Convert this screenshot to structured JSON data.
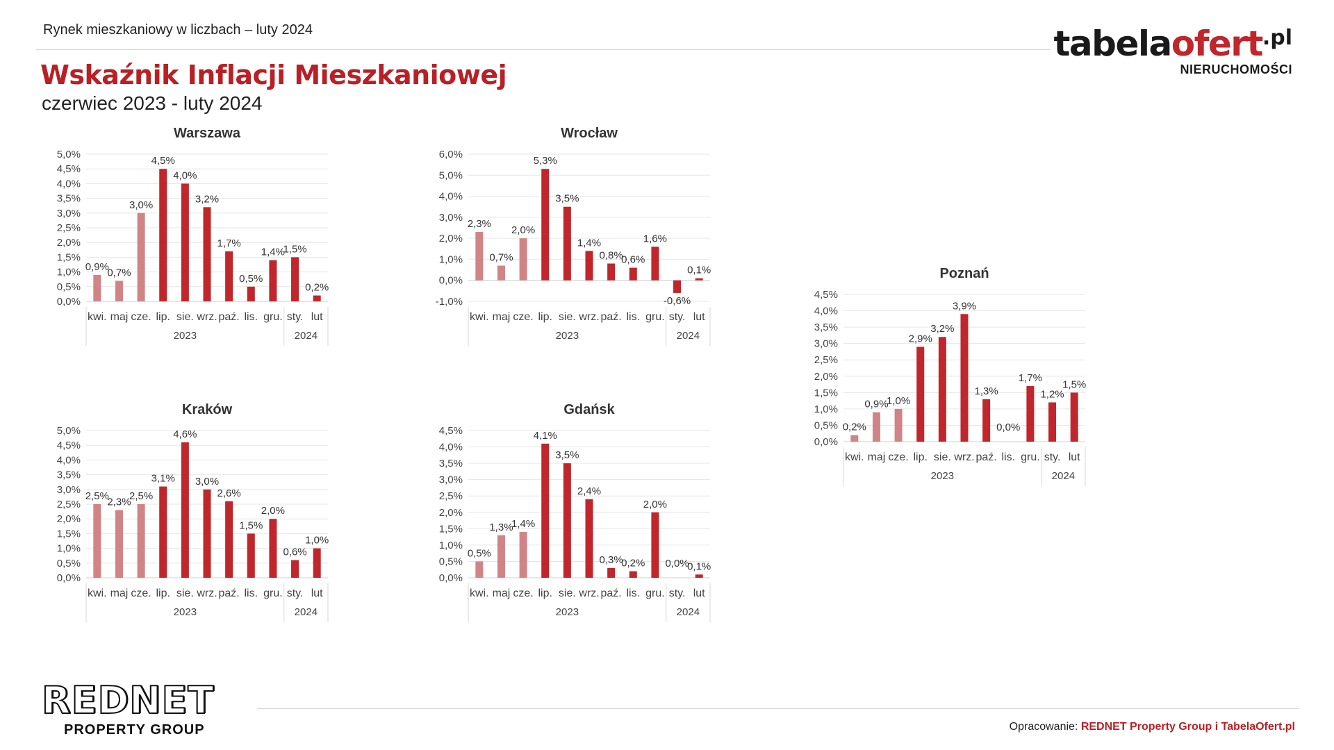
{
  "header": {
    "caption": "Rynek mieszkaniowy w liczbach – luty 2024",
    "title": "Wskaźnik Inflacji Mieszkaniowej",
    "subtitle": "czerwiec 2023 - luty 2024"
  },
  "brand": {
    "name_part1": "tabela",
    "name_part2": "ofert",
    "name_tld": ".pl",
    "sub": "NIERUCHOMOŚCI"
  },
  "footer": {
    "logo_name": "REDNET",
    "logo_sub": "PROPERTY GROUP",
    "credit_prefix": "Opracowanie: ",
    "credit_strong": "REDNET Property Group i TabelaOfert.pl"
  },
  "colors": {
    "bar_light": "#d18486",
    "bar_dark": "#c0262b",
    "title_red": "#b82025"
  },
  "chart_data": [
    {
      "id": "warszawa",
      "type": "bar",
      "title": "Warszawa",
      "categories": [
        "kwi.",
        "maj",
        "cze.",
        "lip.",
        "sie.",
        "wrz.",
        "paź.",
        "lis.",
        "gru.",
        "sty.",
        "lut"
      ],
      "values": [
        0.9,
        0.7,
        3.0,
        4.5,
        4.0,
        3.2,
        1.7,
        0.5,
        1.4,
        1.5,
        0.2
      ],
      "value_labels": [
        "0,9%",
        "0,7%",
        "3,0%",
        "4,5%",
        "4,0%",
        "3,2%",
        "1,7%",
        "0,5%",
        "1,4%",
        "1,5%",
        "0,2%"
      ],
      "light_count": 3,
      "year_groups": [
        {
          "label": "2023",
          "count": 9
        },
        {
          "label": "2024",
          "count": 2
        }
      ],
      "ylim": [
        0,
        5
      ],
      "yticks": [
        0,
        0.5,
        1,
        1.5,
        2,
        2.5,
        3,
        3.5,
        4,
        4.5,
        5
      ],
      "ytick_labels": [
        "0,0%",
        "0,5%",
        "1,0%",
        "1,5%",
        "2,0%",
        "2,5%",
        "3,0%",
        "3,5%",
        "4,0%",
        "4,5%",
        "5,0%"
      ],
      "grid": true
    },
    {
      "id": "wroclaw",
      "type": "bar",
      "title": "Wrocław",
      "categories": [
        "kwi.",
        "maj",
        "cze.",
        "lip.",
        "sie.",
        "wrz.",
        "paź.",
        "lis.",
        "gru.",
        "sty.",
        "lut"
      ],
      "values": [
        2.3,
        0.7,
        2.0,
        5.3,
        3.5,
        1.4,
        0.8,
        0.6,
        1.6,
        -0.6,
        0.1
      ],
      "value_labels": [
        "2,3%",
        "0,7%",
        "2,0%",
        "5,3%",
        "3,5%",
        "1,4%",
        "0,8%",
        "0,6%",
        "1,6%",
        "-0,6%",
        "0,1%"
      ],
      "light_count": 3,
      "year_groups": [
        {
          "label": "2023",
          "count": 9
        },
        {
          "label": "2024",
          "count": 2
        }
      ],
      "ylim": [
        -1,
        6
      ],
      "yticks": [
        -1,
        0,
        1,
        2,
        3,
        4,
        5,
        6
      ],
      "ytick_labels": [
        "-1,0%",
        "0,0%",
        "1,0%",
        "2,0%",
        "3,0%",
        "4,0%",
        "5,0%",
        "6,0%"
      ],
      "grid": true
    },
    {
      "id": "krakow",
      "type": "bar",
      "title": "Kraków",
      "categories": [
        "kwi.",
        "maj",
        "cze.",
        "lip.",
        "sie.",
        "wrz.",
        "paź.",
        "lis.",
        "gru.",
        "sty.",
        "lut"
      ],
      "values": [
        2.5,
        2.3,
        2.5,
        3.1,
        4.6,
        3.0,
        2.6,
        1.5,
        2.0,
        0.6,
        1.0
      ],
      "value_labels": [
        "2,5%",
        "2,3%",
        "2,5%",
        "3,1%",
        "4,6%",
        "3,0%",
        "2,6%",
        "1,5%",
        "2,0%",
        "0,6%",
        "1,0%"
      ],
      "light_count": 3,
      "year_groups": [
        {
          "label": "2023",
          "count": 9
        },
        {
          "label": "2024",
          "count": 2
        }
      ],
      "ylim": [
        0,
        5
      ],
      "yticks": [
        0,
        0.5,
        1,
        1.5,
        2,
        2.5,
        3,
        3.5,
        4,
        4.5,
        5
      ],
      "ytick_labels": [
        "0,0%",
        "0,5%",
        "1,0%",
        "1,5%",
        "2,0%",
        "2,5%",
        "3,0%",
        "3,5%",
        "4,0%",
        "4,5%",
        "5,0%"
      ],
      "grid": true
    },
    {
      "id": "gdansk",
      "type": "bar",
      "title": "Gdańsk",
      "categories": [
        "kwi.",
        "maj",
        "cze.",
        "lip.",
        "sie.",
        "wrz.",
        "paź.",
        "lis.",
        "gru.",
        "sty.",
        "lut"
      ],
      "values": [
        0.5,
        1.3,
        1.4,
        4.1,
        3.5,
        2.4,
        0.3,
        0.2,
        2.0,
        0.0,
        0.1
      ],
      "value_labels": [
        "0,5%",
        "1,3%",
        "1,4%",
        "4,1%",
        "3,5%",
        "2,4%",
        "0,3%",
        "0,2%",
        "2,0%",
        "0,0%",
        "0,1%"
      ],
      "light_count": 3,
      "year_groups": [
        {
          "label": "2023",
          "count": 9
        },
        {
          "label": "2024",
          "count": 2
        }
      ],
      "ylim": [
        0,
        4.5
      ],
      "yticks": [
        0,
        0.5,
        1,
        1.5,
        2,
        2.5,
        3,
        3.5,
        4,
        4.5
      ],
      "ytick_labels": [
        "0,0%",
        "0,5%",
        "1,0%",
        "1,5%",
        "2,0%",
        "2,5%",
        "3,0%",
        "3,5%",
        "4,0%",
        "4,5%"
      ],
      "grid": true
    },
    {
      "id": "poznan",
      "type": "bar",
      "title": "Poznań",
      "categories": [
        "kwi.",
        "maj",
        "cze.",
        "lip.",
        "sie.",
        "wrz.",
        "paź.",
        "lis.",
        "gru.",
        "sty.",
        "lut"
      ],
      "values": [
        0.2,
        0.9,
        1.0,
        2.9,
        3.2,
        3.9,
        1.3,
        0.0,
        1.7,
        1.2,
        1.5
      ],
      "value_labels": [
        "0,2%",
        "0,9%",
        "1,0%",
        "2,9%",
        "3,2%",
        "3,9%",
        "1,3%",
        "0,0%",
        "1,7%",
        "1,2%",
        "1,5%"
      ],
      "light_count": 3,
      "year_groups": [
        {
          "label": "2023",
          "count": 9
        },
        {
          "label": "2024",
          "count": 2
        }
      ],
      "ylim": [
        0,
        4.5
      ],
      "yticks": [
        0,
        0.5,
        1,
        1.5,
        2,
        2.5,
        3,
        3.5,
        4,
        4.5
      ],
      "ytick_labels": [
        "0,0%",
        "0,5%",
        "1,0%",
        "1,5%",
        "2,0%",
        "2,5%",
        "3,0%",
        "3,5%",
        "4,0%",
        "4,5%"
      ],
      "grid": true
    }
  ]
}
